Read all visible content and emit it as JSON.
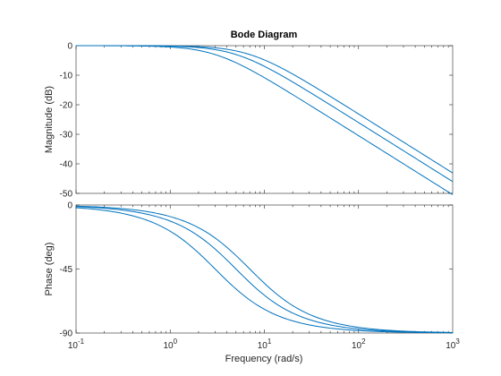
{
  "chart_data": {
    "type": "line",
    "title": "Bode Diagram",
    "xlabel": "Frequency  (rad/s)",
    "xscale": "log",
    "xlim": [
      0.1,
      1000
    ],
    "x_ticks": [
      {
        "value": 0.1,
        "base": "10",
        "exp": "-1"
      },
      {
        "value": 1,
        "base": "10",
        "exp": "0"
      },
      {
        "value": 10,
        "base": "10",
        "exp": "1"
      },
      {
        "value": 100,
        "base": "10",
        "exp": "2"
      },
      {
        "value": 1000,
        "base": "10",
        "exp": "3"
      }
    ],
    "line_color": "#0072BD",
    "grid": false,
    "panels": [
      {
        "name": "magnitude",
        "ylabel": "Magnitude (dB)",
        "ylim": [
          -50,
          0
        ],
        "yticks": [
          0,
          -10,
          -20,
          -30,
          -40,
          -50
        ]
      },
      {
        "name": "phase",
        "ylabel": "Phase (deg)",
        "ylim": [
          -90,
          0
        ],
        "yticks": [
          0,
          -45,
          -90
        ]
      }
    ],
    "series": [
      {
        "corner_rad_s": 3,
        "x": [
          0.1,
          0.2,
          0.5,
          1,
          2,
          3,
          5,
          10,
          20,
          50,
          100,
          200,
          500,
          1000
        ],
        "magnitude_db": [
          0,
          0,
          -0.1,
          -0.5,
          -1.6,
          -3,
          -5.3,
          -10.4,
          -16.3,
          -24.5,
          -30.5,
          -36.5,
          -44.4,
          -50.5
        ],
        "phase_deg": [
          -1.9,
          -3.8,
          -9.5,
          -18.4,
          -33.7,
          -45,
          -59,
          -73.3,
          -81.5,
          -86.6,
          -88.3,
          -89.1,
          -89.7,
          -89.8
        ]
      },
      {
        "corner_rad_s": 5,
        "x": [
          0.1,
          0.2,
          0.5,
          1,
          2,
          3,
          5,
          10,
          20,
          50,
          100,
          200,
          500,
          1000
        ],
        "magnitude_db": [
          0,
          0,
          0,
          -0.2,
          -0.6,
          -1.3,
          -3,
          -7,
          -12.3,
          -20,
          -26,
          -32,
          -40,
          -46
        ],
        "phase_deg": [
          -1.1,
          -2.3,
          -5.7,
          -11.3,
          -21.8,
          -31,
          -45,
          -63.4,
          -76,
          -84.3,
          -87.1,
          -88.6,
          -89.4,
          -89.7
        ]
      },
      {
        "corner_rad_s": 7,
        "x": [
          0.1,
          0.2,
          0.5,
          1,
          2,
          3,
          5,
          10,
          20,
          50,
          100,
          200,
          500,
          1000
        ],
        "magnitude_db": [
          0,
          0,
          0,
          -0.1,
          -0.3,
          -0.7,
          -1.7,
          -4.8,
          -9.6,
          -17.1,
          -23.1,
          -29.1,
          -37.1,
          -43.1
        ],
        "phase_deg": [
          -0.8,
          -1.6,
          -4.1,
          -8.1,
          -15.9,
          -23.2,
          -35.5,
          -55,
          -70.7,
          -81.9,
          -86,
          -88,
          -89.2,
          -89.6
        ]
      }
    ]
  }
}
